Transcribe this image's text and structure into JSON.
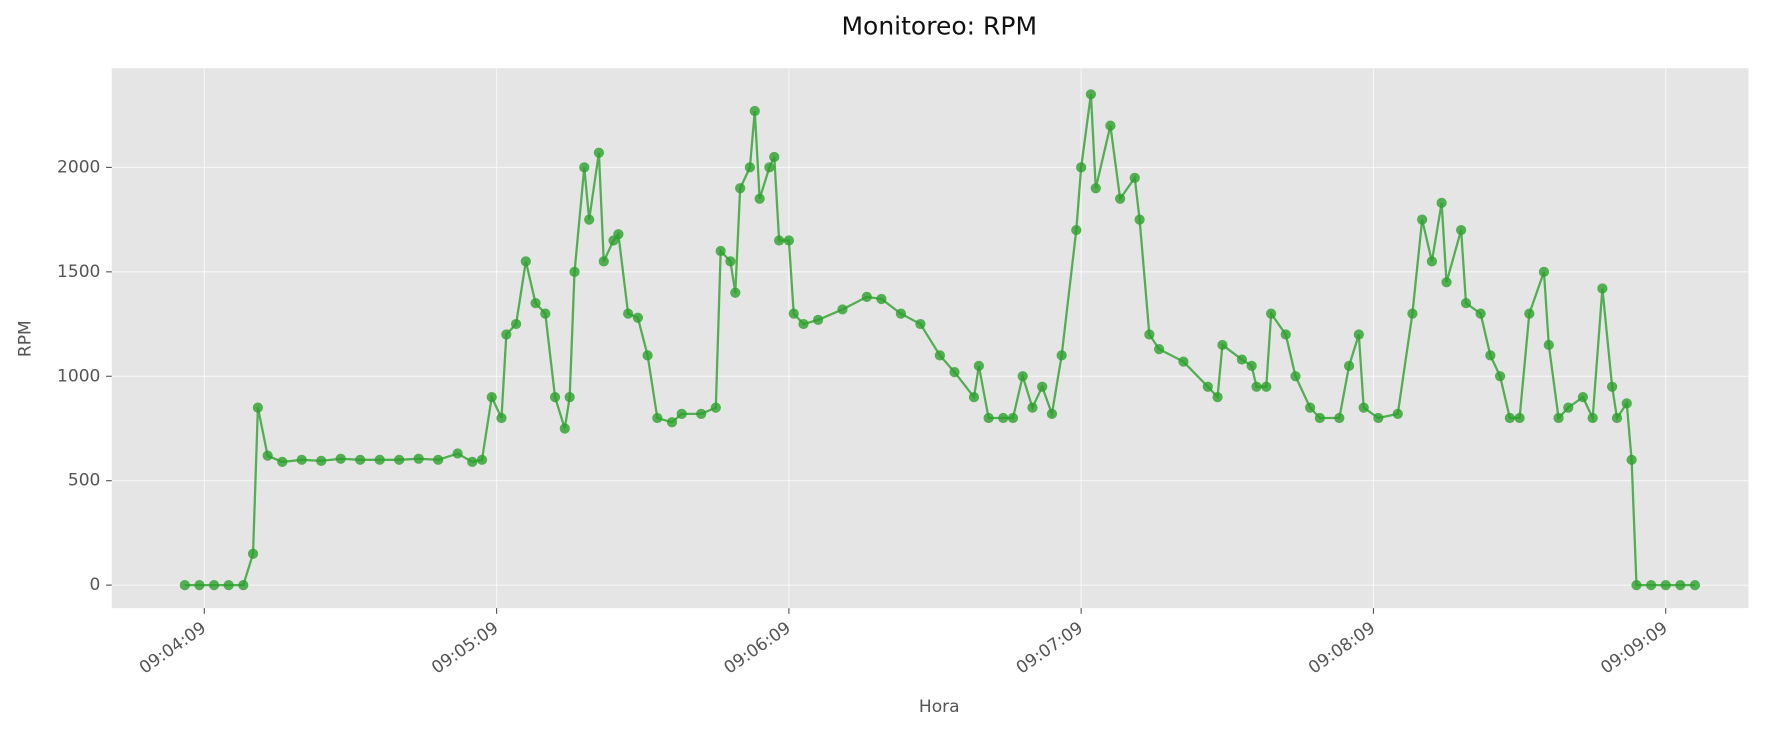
{
  "chart_data": {
    "type": "line",
    "title": "Monitoreo: RPM",
    "xlabel": "Hora",
    "ylabel": "RPM",
    "x": [
      "09:04:05",
      "09:04:08",
      "09:04:11",
      "09:04:14",
      "09:04:17",
      "09:04:19",
      "09:04:20",
      "09:04:22",
      "09:04:25",
      "09:04:29",
      "09:04:33",
      "09:04:37",
      "09:04:41",
      "09:04:45",
      "09:04:49",
      "09:04:53",
      "09:04:57",
      "09:05:01",
      "09:05:04",
      "09:05:06",
      "09:05:08",
      "09:05:10",
      "09:05:11",
      "09:05:13",
      "09:05:15",
      "09:05:17",
      "09:05:19",
      "09:05:21",
      "09:05:23",
      "09:05:24",
      "09:05:25",
      "09:05:27",
      "09:05:28",
      "09:05:30",
      "09:05:31",
      "09:05:33",
      "09:05:34",
      "09:05:36",
      "09:05:38",
      "09:05:40",
      "09:05:42",
      "09:05:45",
      "09:05:47",
      "09:05:51",
      "09:05:54",
      "09:05:55",
      "09:05:57",
      "09:05:58",
      "09:05:59",
      "09:06:01",
      "09:06:02",
      "09:06:03",
      "09:06:05",
      "09:06:06",
      "09:06:07",
      "09:06:09",
      "09:06:10",
      "09:06:12",
      "09:06:15",
      "09:06:20",
      "09:06:25",
      "09:06:28",
      "09:06:32",
      "09:06:36",
      "09:06:40",
      "09:06:43",
      "09:06:47",
      "09:06:48",
      "09:06:50",
      "09:06:53",
      "09:06:55",
      "09:06:57",
      "09:06:59",
      "09:07:01",
      "09:07:03",
      "09:07:05",
      "09:07:08",
      "09:07:09",
      "09:07:11",
      "09:07:12",
      "09:07:15",
      "09:07:17",
      "09:07:20",
      "09:07:21",
      "09:07:23",
      "09:07:25",
      "09:07:30",
      "09:07:35",
      "09:07:37",
      "09:07:38",
      "09:07:42",
      "09:07:44",
      "09:07:45",
      "09:07:47",
      "09:07:48",
      "09:07:51",
      "09:07:53",
      "09:07:56",
      "09:07:58",
      "09:08:02",
      "09:08:04",
      "09:08:06",
      "09:08:07",
      "09:08:10",
      "09:08:14",
      "09:08:17",
      "09:08:19",
      "09:08:21",
      "09:08:23",
      "09:08:24",
      "09:08:27",
      "09:08:28",
      "09:08:31",
      "09:08:33",
      "09:08:35",
      "09:08:37",
      "09:08:39",
      "09:08:41",
      "09:08:44",
      "09:08:45",
      "09:08:47",
      "09:08:49",
      "09:08:52",
      "09:08:54",
      "09:08:56",
      "09:08:58",
      "09:08:59",
      "09:09:01",
      "09:09:02",
      "09:09:03",
      "09:09:06",
      "09:09:09",
      "09:09:12",
      "09:09:15"
    ],
    "series": [
      {
        "name": "RPM",
        "color": "#2ca02c",
        "values": [
          0,
          0,
          0,
          0,
          0,
          150,
          850,
          620,
          590,
          600,
          595,
          605,
          600,
          600,
          600,
          605,
          600,
          630,
          590,
          600,
          900,
          800,
          1200,
          1250,
          1550,
          1350,
          1300,
          900,
          750,
          900,
          1500,
          2000,
          1750,
          2070,
          1550,
          1650,
          1680,
          1300,
          1280,
          1100,
          800,
          780,
          820,
          820,
          850,
          1600,
          1550,
          1400,
          1900,
          2000,
          2270,
          1850,
          2000,
          2050,
          1650,
          1650,
          1300,
          1250,
          1270,
          1320,
          1380,
          1370,
          1300,
          1250,
          1100,
          1020,
          900,
          1050,
          800,
          800,
          800,
          1000,
          850,
          950,
          820,
          1100,
          1700,
          2000,
          2350,
          1900,
          2200,
          1850,
          1950,
          1750,
          1200,
          1130,
          1070,
          950,
          900,
          1150,
          1080,
          1050,
          950,
          950,
          1300,
          1200,
          1000,
          850,
          800,
          800,
          1050,
          1200,
          850,
          800,
          820,
          1300,
          1750,
          1550,
          1830,
          1450,
          1700,
          1350,
          1300,
          1100,
          1000,
          800,
          800,
          1300,
          1500,
          1150,
          800,
          850,
          900,
          800,
          1420,
          950,
          800,
          870,
          600,
          0,
          0,
          0,
          0,
          0
        ]
      }
    ],
    "xlim": [
      "09:03:50",
      "09:09:26"
    ],
    "xticks": [
      "09:04:09",
      "09:05:09",
      "09:06:09",
      "09:07:09",
      "09:08:09",
      "09:09:09"
    ],
    "ylim": [
      -110,
      2475
    ],
    "yticks": [
      0,
      500,
      1000,
      1500,
      2000
    ],
    "grid": true
  }
}
